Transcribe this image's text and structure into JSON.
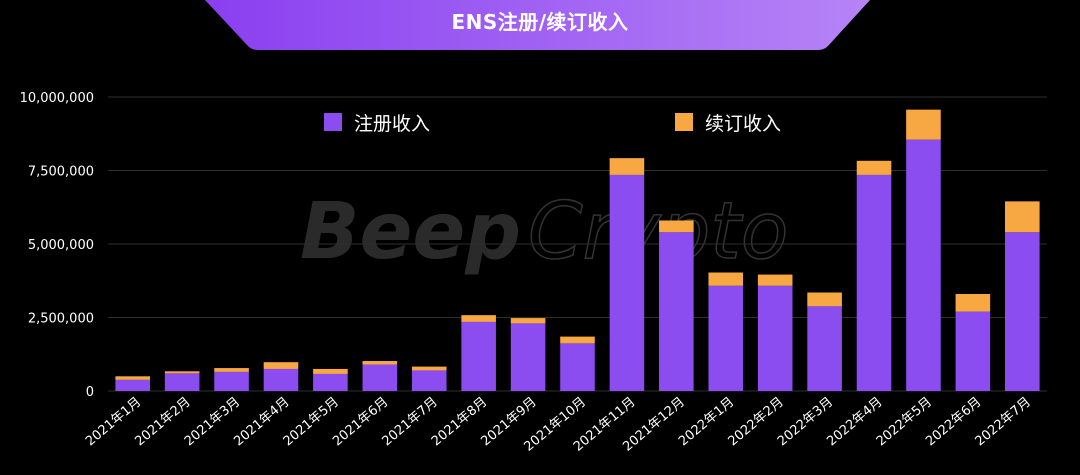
{
  "header": {
    "title": "ENS注册/续订收入"
  },
  "watermark": {
    "part1": "Beep",
    "part2": "Crypto"
  },
  "colors": {
    "background": "#000000",
    "banner_start": "#8a3ff0",
    "banner_end": "#b684f6",
    "registration": "#8b4cf0",
    "renewal": "#f7a843",
    "grid": "#2e2e2e"
  },
  "chart_data": {
    "type": "bar",
    "stacked": true,
    "title": "ENS注册/续订收入",
    "xlabel": "",
    "ylabel": "",
    "ylim": [
      0,
      10000000
    ],
    "yticks": [
      0,
      2500000,
      5000000,
      7500000,
      10000000
    ],
    "ytick_labels": [
      "0",
      "2,500,000",
      "5,000,000",
      "7,500,000",
      "10,000,000"
    ],
    "grid": true,
    "legend_position": "top",
    "categories": [
      "2021年1月",
      "2021年2月",
      "2021年3月",
      "2021年4月",
      "2021年5月",
      "2021年6月",
      "2021年7月",
      "2021年8月",
      "2021年9月",
      "2021年10月",
      "2021年11月",
      "2021年12月",
      "2022年1月",
      "2022年2月",
      "2022年3月",
      "2022年4月",
      "2022年5月",
      "2022年6月",
      "2022年7月"
    ],
    "series": [
      {
        "name": "注册收入",
        "color": "#8b4cf0",
        "values": [
          380000,
          600000,
          650000,
          750000,
          580000,
          900000,
          700000,
          2350000,
          2300000,
          1620000,
          7350000,
          5400000,
          3580000,
          3580000,
          2880000,
          7350000,
          8550000,
          2700000,
          5400000
        ]
      },
      {
        "name": "续订收入",
        "color": "#f7a843",
        "values": [
          120000,
          70000,
          130000,
          230000,
          170000,
          120000,
          130000,
          230000,
          180000,
          230000,
          570000,
          400000,
          450000,
          380000,
          470000,
          480000,
          1020000,
          600000,
          1050000
        ]
      }
    ]
  }
}
